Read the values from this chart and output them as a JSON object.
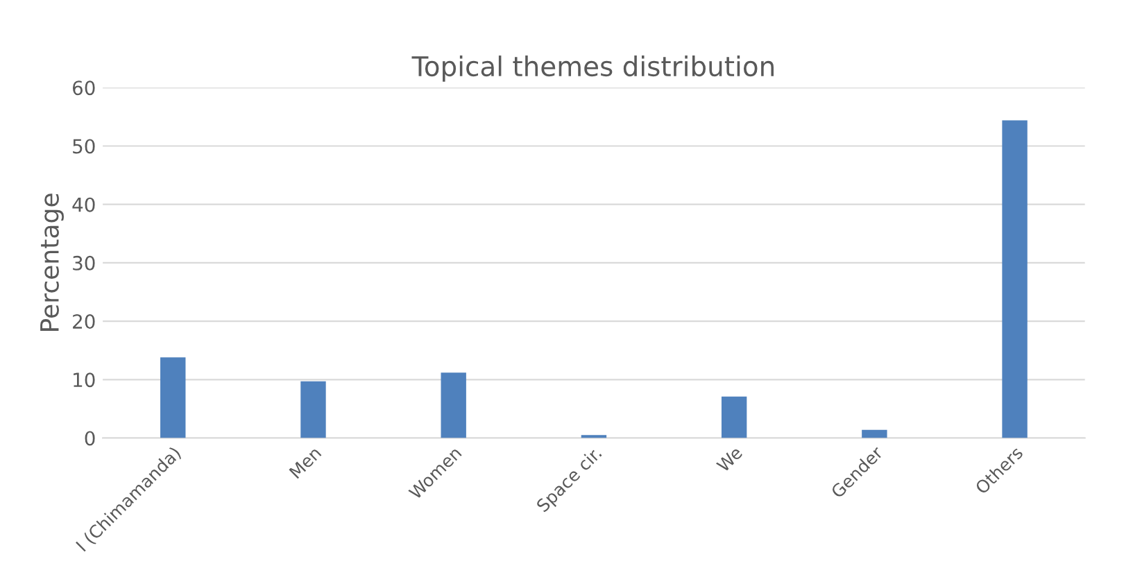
{
  "chart_data": {
    "type": "bar",
    "title": "Topical themes distribution",
    "ylabel": "Percentage",
    "categories": [
      "I (Chimamanda)",
      "Men",
      "Women",
      "Space cir.",
      "We",
      "Gender",
      "Others"
    ],
    "values": [
      13.8,
      9.7,
      11.2,
      0.5,
      7.1,
      1.4,
      54.4
    ],
    "color": "#4f81bd",
    "ylim": [
      0,
      60
    ],
    "yticks": [
      0,
      10,
      20,
      30,
      40,
      50,
      60
    ],
    "grid": "y",
    "legend": false
  }
}
